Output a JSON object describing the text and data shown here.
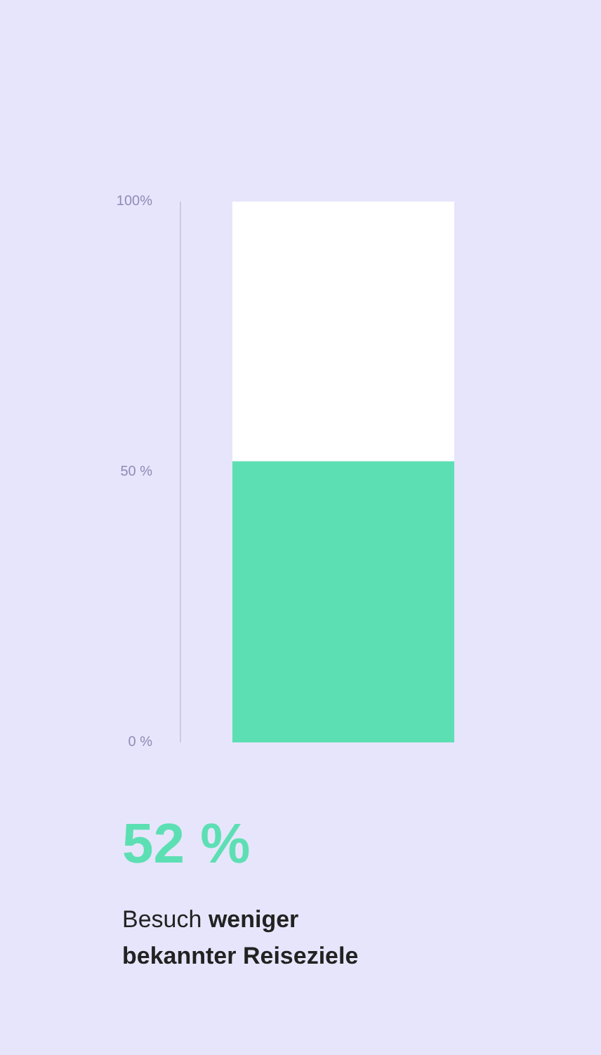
{
  "chart_data": {
    "type": "bar",
    "stacked": true,
    "categories": [
      null
    ],
    "series": [
      {
        "color": "#5ddfb4",
        "values": [
          52
        ]
      },
      {
        "color": "#ffffff",
        "values": [
          48
        ]
      }
    ],
    "ylim": [
      0,
      100
    ],
    "yticks": [
      {
        "value": 0,
        "label": "0 %"
      },
      {
        "value": 50,
        "label": "50 %"
      },
      {
        "value": 100,
        "label": "100%"
      }
    ],
    "grid": false,
    "annotations": [
      "52 %",
      "Besuch weniger bekannter Reiseziele"
    ]
  }
}
